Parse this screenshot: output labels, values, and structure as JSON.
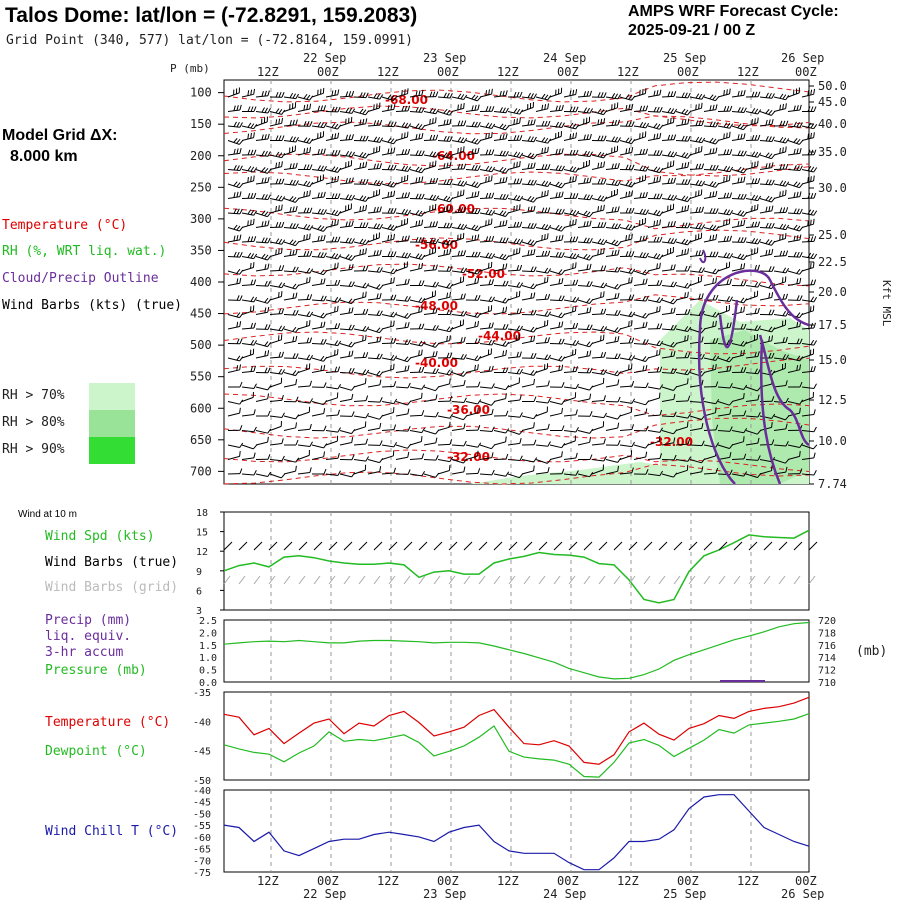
{
  "header": {
    "title": "Talos Dome:  lat/lon = (-72.8291, 159.2083)",
    "subtitle": "Grid Point (340, 577) lat/lon = (-72.8164, 159.0991)",
    "cycle_line1": "AMPS WRF Forecast Cycle:",
    "cycle_line2": "2025-09-21 / 00  Z"
  },
  "left_legend": {
    "grid_label": "Model Grid ΔX:",
    "grid_value": "8.000 km",
    "temperature": "Temperature (°C)",
    "rh": "RH (%, WRT liq. wat.)",
    "cloud": "Cloud/Precip Outline",
    "wind": "Wind Barbs (kts) (true)",
    "rh70": "RH > 70%",
    "rh80": "RH > 80%",
    "rh90": "RH > 90%",
    "colors": {
      "rh70": "#ccf5cc",
      "rh80": "#99e399",
      "rh90": "#33dd33",
      "temp": "#dd0000",
      "cloud": "#6a2d9c",
      "wind": "#000000"
    }
  },
  "time_axis": {
    "hour_labels": [
      "12Z",
      "00Z",
      "12Z",
      "00Z",
      "12Z",
      "00Z",
      "12Z",
      "00Z",
      "12Z",
      "00Z"
    ],
    "date_labels": [
      "22 Sep",
      "23 Sep",
      "24 Sep",
      "25 Sep",
      "26 Sep"
    ]
  },
  "chart_data": [
    {
      "type": "contour",
      "panel": "cross-section",
      "ylabel": "P (mb)",
      "right_label": "Kft MSL",
      "pressure_ticks": [
        100,
        150,
        200,
        250,
        300,
        350,
        400,
        450,
        500,
        550,
        600,
        650,
        700
      ],
      "height_ticks": [
        "50.0",
        "45.0",
        "40.0",
        "35.0",
        "30.0",
        "25.0",
        "22.5",
        "20.0",
        "17.5",
        "15.0",
        "12.5",
        "10.0",
        "7.74"
      ],
      "temperature_contour_labels": [
        "-68.00",
        "-64.00",
        "-60.00",
        "-56.00",
        "-52.00",
        "-48.00",
        "-44.00",
        "-40.00",
        "-36.00",
        "-32.00",
        "-32.00"
      ],
      "ylim": [
        720,
        80
      ]
    },
    {
      "type": "line",
      "panel": "wind",
      "title": "Wind at 10 m",
      "labels": [
        "Wind Spd (kts)",
        "Wind Barbs (true)",
        "Wind Barbs (grid)"
      ],
      "y_ticks": [
        "18",
        "15",
        "12",
        "9",
        "6",
        "3"
      ],
      "ylim": [
        3,
        18
      ],
      "speed": [
        9.0,
        9.8,
        10.2,
        9.6,
        11.1,
        11.3,
        11.0,
        10.5,
        10.2,
        10.0,
        10.0,
        10.2,
        9.9,
        8.0,
        8.8,
        9.0,
        8.5,
        8.5,
        10.2,
        10.8,
        11.2,
        11.8,
        11.5,
        11.4,
        11.1,
        10.1,
        9.9,
        7.6,
        4.6,
        4.1,
        4.6,
        8.9,
        11.3,
        12.2,
        13.3,
        14.5,
        14.2,
        14.1,
        14.0,
        15.2
      ]
    },
    {
      "type": "line",
      "panel": "precip-pressure",
      "labels": [
        "Precip (mm)",
        "liq. equiv.",
        "3-hr accum",
        "Pressure (mb)"
      ],
      "left_ticks": [
        "2.5",
        "2.0",
        "1.5",
        "1.0",
        "0.5",
        "0.0"
      ],
      "right_ticks": [
        "720",
        "718",
        "716",
        "714",
        "712",
        "710"
      ],
      "right_label": "(mb)",
      "pressure_ylim": [
        710,
        720
      ],
      "pressure": [
        716.1,
        716.3,
        716.5,
        716.6,
        716.5,
        716.7,
        716.5,
        716.3,
        716.3,
        716.6,
        716.7,
        716.7,
        716.6,
        716.5,
        716.3,
        716.4,
        716.4,
        716.3,
        715.8,
        715.2,
        714.6,
        713.9,
        713.2,
        712.2,
        711.5,
        710.8,
        710.5,
        710.6,
        711.2,
        712.1,
        713.5,
        714.4,
        715.2,
        716.0,
        716.8,
        717.4,
        718.1,
        718.9,
        719.4,
        719.6
      ],
      "precip": [
        0,
        0,
        0,
        0,
        0,
        0,
        0,
        0,
        0,
        0,
        0,
        0,
        0,
        0,
        0,
        0,
        0,
        0,
        0,
        0,
        0,
        0,
        0,
        0,
        0,
        0,
        0,
        0,
        0,
        0,
        0,
        0,
        0,
        0,
        0.03,
        0.03,
        0.03,
        0,
        0,
        0
      ]
    },
    {
      "type": "line",
      "panel": "temperature",
      "labels": [
        "Temperature (°C)",
        "Dewpoint (°C)"
      ],
      "y_ticks": [
        "-35",
        "-40",
        "-45",
        "-50"
      ],
      "ylim": [
        -50,
        -35
      ],
      "temperature": [
        -38.8,
        -39.3,
        -42.3,
        -41.2,
        -43.8,
        -42.0,
        -40.3,
        -39.6,
        -42.1,
        -40.3,
        -40.8,
        -39.0,
        -38.3,
        -40.2,
        -42.5,
        -41.8,
        -41.0,
        -39.0,
        -38.0,
        -41.0,
        -43.8,
        -44.0,
        -43.3,
        -44.2,
        -47.0,
        -47.3,
        -45.7,
        -41.8,
        -40.3,
        -42.2,
        -43.2,
        -41.2,
        -40.4,
        -39.0,
        -39.5,
        -38.3,
        -37.8,
        -37.5,
        -36.9,
        -35.9
      ],
      "dewpoint": [
        -44.0,
        -44.7,
        -45.3,
        -45.6,
        -46.9,
        -45.4,
        -44.2,
        -41.8,
        -43.4,
        -43.1,
        -43.3,
        -42.8,
        -42.3,
        -43.6,
        -45.9,
        -45.1,
        -44.2,
        -42.7,
        -40.8,
        -45.1,
        -46.1,
        -46.4,
        -46.6,
        -47.3,
        -49.4,
        -49.5,
        -47.0,
        -43.7,
        -43.1,
        -44.1,
        -46.0,
        -44.6,
        -43.2,
        -41.4,
        -42.0,
        -40.6,
        -40.3,
        -40.0,
        -39.6,
        -38.7
      ]
    },
    {
      "type": "line",
      "panel": "wind-chill",
      "labels": [
        "Wind Chill T (°C)"
      ],
      "y_ticks": [
        "-40",
        "-45",
        "-50",
        "-55",
        "-60",
        "-65",
        "-70",
        "-75"
      ],
      "ylim": [
        -75,
        -40
      ],
      "wind_chill": [
        -55,
        -56,
        -62,
        -58,
        -66,
        -68,
        -65,
        -62,
        -61,
        -61,
        -59,
        -58,
        -59,
        -60,
        -62,
        -58,
        -56,
        -55,
        -62,
        -66,
        -67,
        -67,
        -67,
        -71,
        -74,
        -74,
        -69,
        -62,
        -62,
        -61,
        -57,
        -48,
        -43,
        -42,
        -42,
        -49,
        -56,
        -59,
        -62,
        -64
      ]
    }
  ]
}
